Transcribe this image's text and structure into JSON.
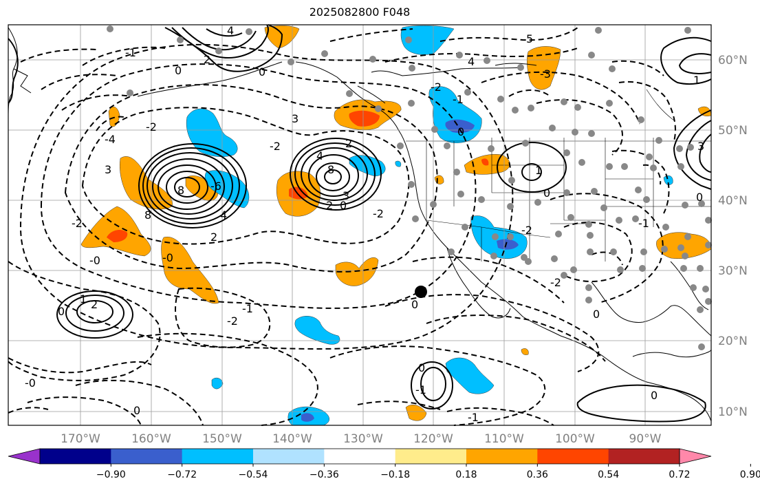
{
  "title": "2025082800 F048",
  "lon_labels": [
    "170°W",
    "160°W",
    "150°W",
    "140°W",
    "130°W",
    "120°W",
    "110°W",
    "100°W",
    "90°W"
  ],
  "lat_labels": [
    "60°N",
    "50°N",
    "40°N",
    "30°N",
    "20°N",
    "10°N"
  ],
  "colorbar": {
    "tick_labels": [
      "−0.90",
      "−0.72",
      "−0.54",
      "−0.36",
      "−0.18",
      "0.18",
      "0.36",
      "0.54",
      "0.72",
      "0.90"
    ],
    "colors": [
      "#9932CC",
      "#00008B",
      "#3A5FCD",
      "#00BFFF",
      "#B0E2FF",
      "#FFFFFF",
      "#FFEC8B",
      "#FFA500",
      "#FF4500",
      "#B22222",
      "#FF88AA"
    ]
  },
  "contour_labels": [
    "6",
    "4",
    "3",
    "-3",
    "2",
    "-2",
    "1",
    "-1",
    "0",
    "-0",
    "8",
    "-4",
    "-6",
    "5"
  ],
  "colors": {
    "positive_fill": "#FFA500",
    "strong_positive": "#FF4500",
    "negative_fill": "#00BFFF",
    "strong_negative": "#3A5FCD",
    "station": "#888888"
  }
}
